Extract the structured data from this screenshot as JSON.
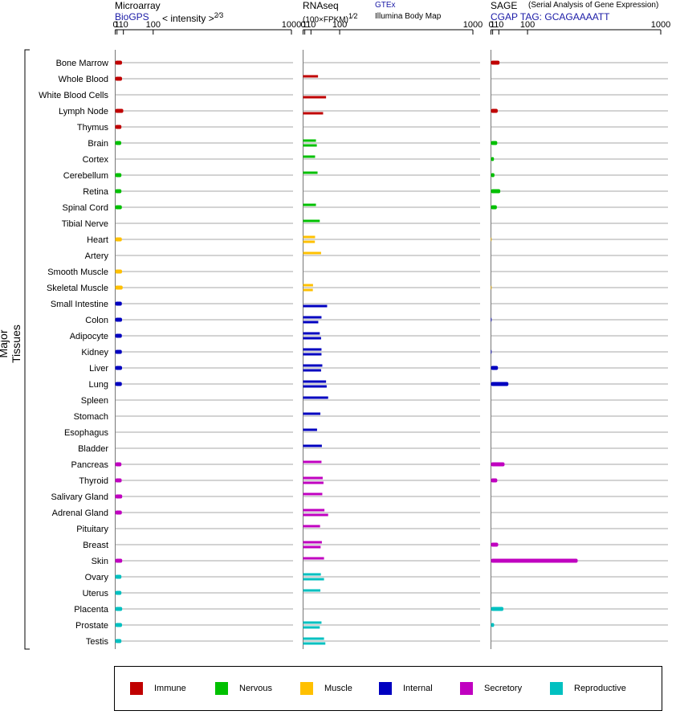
{
  "headers": {
    "microarray": {
      "title": "Microarray",
      "source": "BioGPS",
      "metric": "< intensity >",
      "exponent": "2⁄3"
    },
    "rnaseq": {
      "title": "RNAseq",
      "unit": "(100×FPKM)",
      "exponent": "1⁄2",
      "source_gtex": "GTEx",
      "source_ibm": "Illumina Body Map"
    },
    "sage": {
      "title": "SAGE",
      "subtitle": "(Serial Analysis of Gene Expression)",
      "tag": "CGAP TAG: GCAGAAAATT"
    }
  },
  "axis_label": "Major Tissues",
  "legend": [
    {
      "label": "Immune",
      "color": "#c00000"
    },
    {
      "label": "Nervous",
      "color": "#00c000"
    },
    {
      "label": "Muscle",
      "color": "#ffc000"
    },
    {
      "label": "Internal",
      "color": "#0000c0"
    },
    {
      "label": "Secretory",
      "color": "#c000c0"
    },
    {
      "label": "Reproductive",
      "color": "#00c0c0"
    }
  ],
  "chart_data": {
    "type": "bar",
    "orientation": "horizontal",
    "x_scale": "power",
    "x_ticks": [
      "0",
      "1",
      "10",
      "100",
      "1000"
    ],
    "xlim": [
      0,
      1000
    ],
    "categories": [
      "Bone Marrow",
      "Whole Blood",
      "White Blood Cells",
      "Lymph Node",
      "Thymus",
      "Brain",
      "Cortex",
      "Cerebellum",
      "Retina",
      "Spinal Cord",
      "Tibial Nerve",
      "Heart",
      "Artery",
      "Smooth Muscle",
      "Skeletal Muscle",
      "Small Intestine",
      "Colon",
      "Adipocyte",
      "Kidney",
      "Liver",
      "Lung",
      "Spleen",
      "Stomach",
      "Esophagus",
      "Bladder",
      "Pancreas",
      "Thyroid",
      "Salivary Gland",
      "Adrenal Gland",
      "Pituitary",
      "Breast",
      "Skin",
      "Ovary",
      "Uterus",
      "Placenta",
      "Prostate",
      "Testis"
    ],
    "tissue_group": [
      "Immune",
      "Immune",
      "Immune",
      "Immune",
      "Immune",
      "Nervous",
      "Nervous",
      "Nervous",
      "Nervous",
      "Nervous",
      "Nervous",
      "Muscle",
      "Muscle",
      "Muscle",
      "Muscle",
      "Internal",
      "Internal",
      "Internal",
      "Internal",
      "Internal",
      "Internal",
      "Internal",
      "Internal",
      "Internal",
      "Internal",
      "Secretory",
      "Secretory",
      "Secretory",
      "Secretory",
      "Secretory",
      "Secretory",
      "Secretory",
      "Reproductive",
      "Reproductive",
      "Reproductive",
      "Reproductive",
      "Reproductive"
    ],
    "panels": [
      {
        "name": "Microarray",
        "values": [
          7.6,
          7.6,
          null,
          9.8,
          6.6,
          6.3,
          null,
          6.6,
          6.6,
          7.3,
          null,
          7.3,
          null,
          7.6,
          8.7,
          7.3,
          7.6,
          7.3,
          7.3,
          7.6,
          7.3,
          null,
          null,
          null,
          null,
          6.6,
          7.0,
          7.9,
          7.3,
          null,
          null,
          7.9,
          6.6,
          6.6,
          7.9,
          7.6,
          6.6
        ]
      },
      {
        "name": "RNAseq GTEx",
        "values": [
          null,
          26.1,
          null,
          null,
          null,
          20.9,
          18.8,
          24.9,
          null,
          20.9,
          30.8,
          18.8,
          34.5,
          null,
          14.2,
          null,
          35.7,
          30.8,
          35.7,
          38.1,
          49.8,
          56.7,
          32.5,
          23.6,
          36.8,
          35.7,
          39.3,
          38.1,
          44.6,
          31.6,
          36.8,
          43.3,
          33.9,
          32.5,
          null,
          35.7,
          43.3
        ]
      },
      {
        "name": "RNAseq Illumina Body Map",
        "values": [
          null,
          null,
          49.8,
          40.5,
          null,
          23.0,
          null,
          null,
          null,
          null,
          null,
          18.3,
          null,
          null,
          13.8,
          53.3,
          26.8,
          34.5,
          35.7,
          34.5,
          51.8,
          null,
          null,
          null,
          null,
          null,
          41.7,
          null,
          56.7,
          null,
          33.2,
          null,
          43.3,
          null,
          null,
          30.8,
          47.5
        ]
      },
      {
        "name": "SAGE",
        "values": [
          11.4,
          null,
          null,
          8.0,
          null,
          7.2,
          2.4,
          3.0,
          12.9,
          6.5,
          null,
          0.05,
          null,
          null,
          0.05,
          null,
          0.05,
          null,
          0.05,
          8.4,
          33.0,
          null,
          null,
          null,
          null,
          22.7,
          7.2,
          null,
          null,
          null,
          8.8,
          365,
          null,
          null,
          19.9,
          2.6,
          null
        ]
      }
    ]
  }
}
